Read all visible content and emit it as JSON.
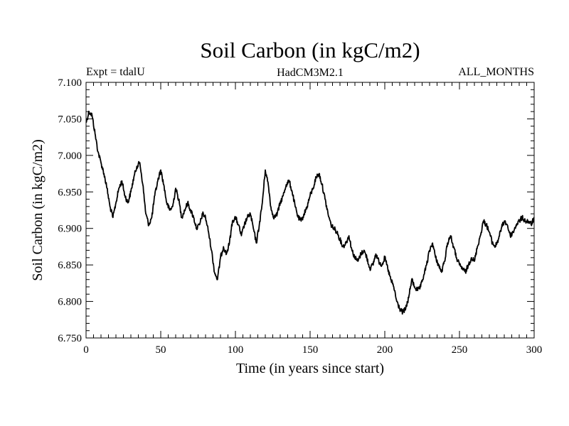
{
  "chart_data": {
    "type": "line",
    "title": "Soil Carbon (in kgC/m2)",
    "subtitle_left": "Expt = tdalU",
    "subtitle_center": "HadCM3M2.1",
    "subtitle_right": "ALL_MONTHS",
    "xlabel": "Time (in years since start)",
    "ylabel": "Soil Carbon (in kgC/m2)",
    "xlim": [
      0,
      300
    ],
    "ylim": [
      6.75,
      7.1
    ],
    "xticks": [
      0,
      50,
      100,
      150,
      200,
      250,
      300
    ],
    "xtick_labels": [
      "0",
      "50",
      "100",
      "150",
      "200",
      "250",
      "300"
    ],
    "yticks": [
      6.75,
      6.8,
      6.85,
      6.9,
      6.95,
      7.0,
      7.05,
      7.1
    ],
    "ytick_labels": [
      "6.750",
      "6.800",
      "6.850",
      "6.900",
      "6.950",
      "7.000",
      "7.050",
      "7.100"
    ],
    "grid": false,
    "line_color": "#000000",
    "series": [
      {
        "name": "Soil Carbon",
        "x": [
          0,
          2,
          4,
          6,
          8,
          10,
          12,
          14,
          16,
          18,
          20,
          22,
          24,
          26,
          28,
          30,
          32,
          34,
          36,
          38,
          40,
          42,
          44,
          46,
          48,
          50,
          52,
          54,
          56,
          58,
          60,
          62,
          64,
          66,
          68,
          70,
          72,
          74,
          76,
          78,
          80,
          82,
          84,
          86,
          88,
          90,
          92,
          94,
          96,
          98,
          100,
          102,
          104,
          106,
          108,
          110,
          112,
          114,
          116,
          118,
          120,
          122,
          124,
          126,
          128,
          130,
          132,
          134,
          136,
          138,
          140,
          142,
          144,
          146,
          148,
          150,
          152,
          154,
          156,
          158,
          160,
          162,
          164,
          166,
          168,
          170,
          172,
          174,
          176,
          178,
          180,
          182,
          184,
          186,
          188,
          190,
          192,
          194,
          196,
          198,
          200,
          202,
          204,
          206,
          208,
          210,
          212,
          214,
          216,
          218,
          220,
          222,
          224,
          226,
          228,
          230,
          232,
          234,
          236,
          238,
          240,
          242,
          244,
          246,
          248,
          250,
          252,
          254,
          256,
          258,
          260,
          262,
          264,
          266,
          268,
          270,
          272,
          274,
          276,
          278,
          280,
          282,
          284,
          286,
          288,
          290,
          292,
          294,
          296,
          298,
          300
        ],
        "values": [
          7.045,
          7.06,
          7.055,
          7.03,
          7.005,
          6.99,
          6.975,
          6.955,
          6.93,
          6.915,
          6.935,
          6.955,
          6.965,
          6.945,
          6.935,
          6.95,
          6.97,
          6.985,
          6.99,
          6.96,
          6.92,
          6.905,
          6.915,
          6.945,
          6.965,
          6.98,
          6.96,
          6.935,
          6.925,
          6.93,
          6.955,
          6.94,
          6.915,
          6.925,
          6.935,
          6.925,
          6.915,
          6.9,
          6.905,
          6.92,
          6.915,
          6.895,
          6.87,
          6.84,
          6.83,
          6.86,
          6.875,
          6.865,
          6.88,
          6.91,
          6.915,
          6.905,
          6.89,
          6.905,
          6.915,
          6.92,
          6.9,
          6.88,
          6.905,
          6.935,
          6.98,
          6.96,
          6.925,
          6.915,
          6.92,
          6.935,
          6.945,
          6.96,
          6.965,
          6.95,
          6.93,
          6.915,
          6.91,
          6.92,
          6.93,
          6.945,
          6.955,
          6.97,
          6.975,
          6.96,
          6.94,
          6.92,
          6.905,
          6.9,
          6.895,
          6.885,
          6.875,
          6.88,
          6.89,
          6.87,
          6.86,
          6.855,
          6.865,
          6.87,
          6.86,
          6.845,
          6.85,
          6.865,
          6.855,
          6.85,
          6.86,
          6.845,
          6.83,
          6.82,
          6.8,
          6.79,
          6.785,
          6.79,
          6.805,
          6.83,
          6.82,
          6.815,
          6.82,
          6.835,
          6.85,
          6.87,
          6.88,
          6.86,
          6.85,
          6.84,
          6.855,
          6.88,
          6.89,
          6.875,
          6.86,
          6.85,
          6.845,
          6.84,
          6.85,
          6.86,
          6.855,
          6.875,
          6.89,
          6.91,
          6.905,
          6.895,
          6.88,
          6.875,
          6.885,
          6.9,
          6.91,
          6.905,
          6.89,
          6.895,
          6.905,
          6.91,
          6.915,
          6.91,
          6.91,
          6.905,
          6.915
        ]
      }
    ]
  }
}
